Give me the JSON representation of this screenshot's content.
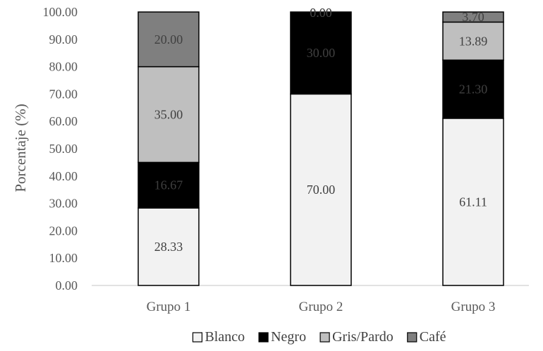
{
  "chart_data": {
    "type": "bar",
    "stacked": true,
    "categories": [
      "Grupo 1",
      "Grupo 2",
      "Grupo 3"
    ],
    "series": [
      {
        "name": "Blanco",
        "values": [
          28.33,
          70.0,
          61.11
        ],
        "color": "#f2f2f2",
        "label_color": "#404040"
      },
      {
        "name": "Negro",
        "values": [
          16.67,
          30.0,
          21.3
        ],
        "color": "#000000",
        "label_color": "#404040"
      },
      {
        "name": "Gris/Pardo",
        "values": [
          35.0,
          0.0,
          13.89
        ],
        "color": "#bfbfbf",
        "label_color": "#404040"
      },
      {
        "name": "Café",
        "values": [
          20.0,
          0.0,
          3.7
        ],
        "color": "#7f7f7f",
        "label_color": "#404040"
      }
    ],
    "data_labels": [
      [
        "28.33",
        "70.00",
        "61.11"
      ],
      [
        "16.67",
        "30.00",
        "21.30"
      ],
      [
        "35.00",
        "0.00",
        "13.89"
      ],
      [
        "20.00",
        "0.00",
        "3.70"
      ]
    ],
    "title": "",
    "xlabel": "",
    "ylabel": "Porcentaje (%)",
    "ylim": [
      0,
      100
    ],
    "yticks": [
      "0.00",
      "10.00",
      "20.00",
      "30.00",
      "40.00",
      "50.00",
      "60.00",
      "70.00",
      "80.00",
      "90.00",
      "100.00"
    ],
    "grid": false,
    "legend": "bottom"
  }
}
